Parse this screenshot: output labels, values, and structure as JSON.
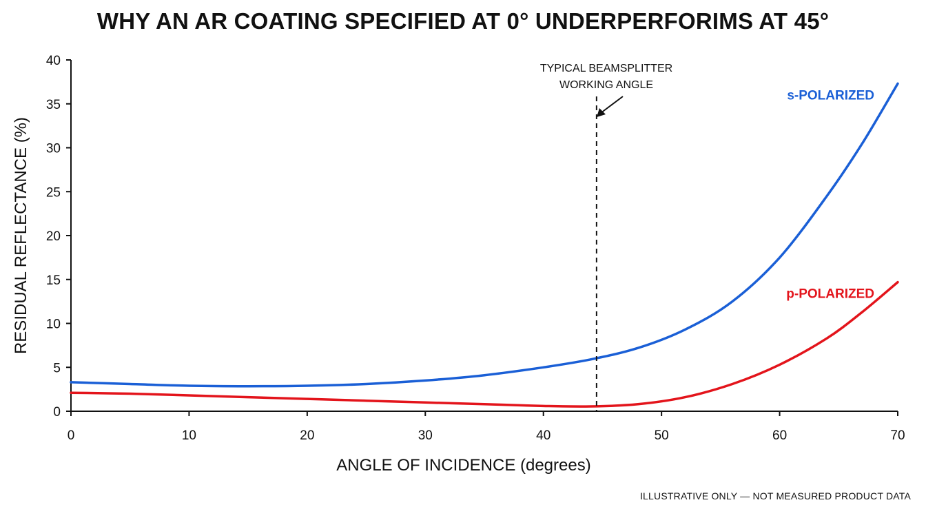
{
  "chart_data": {
    "type": "line",
    "title": "WHY AN AR COATING SPECIFIED AT 0° UNDERPERFORIMS AT 45°",
    "xlabel": "ANGLE OF INCIDENCE (degrees)",
    "ylabel": "RESIDUAL REFLECTANCE (%)",
    "xlim": [
      0,
      70
    ],
    "ylim": [
      0,
      40
    ],
    "xticks": [
      0,
      10,
      20,
      30,
      40,
      50,
      60,
      70
    ],
    "yticks": [
      0,
      5,
      10,
      15,
      20,
      25,
      30,
      35,
      40
    ],
    "grid": false,
    "series": [
      {
        "name": "s-POLARIZED",
        "color": "#1a5fd6",
        "x": [
          0,
          5,
          10,
          15,
          20,
          25,
          30,
          35,
          40,
          44,
          48,
          52,
          56,
          60,
          64,
          67,
          70
        ],
        "y": [
          3.3,
          3.1,
          2.9,
          2.85,
          2.9,
          3.1,
          3.5,
          4.1,
          5.0,
          5.9,
          7.2,
          9.3,
          12.5,
          17.5,
          24.5,
          30.5,
          37.3
        ]
      },
      {
        "name": "p-POLARIZED",
        "color": "#e3141b",
        "x": [
          0,
          5,
          10,
          15,
          20,
          25,
          30,
          35,
          40,
          44,
          48,
          52,
          56,
          60,
          64,
          67,
          70
        ],
        "y": [
          2.1,
          2.0,
          1.8,
          1.6,
          1.4,
          1.2,
          1.0,
          0.8,
          0.6,
          0.55,
          0.8,
          1.6,
          3.1,
          5.3,
          8.3,
          11.3,
          14.7
        ]
      }
    ],
    "annotations": [
      {
        "text_lines": [
          "TYPICAL BEAMSPLITTER",
          "WORKING ANGLE"
        ],
        "x": 44.5,
        "style": "dashed vertical line with arrow"
      }
    ],
    "footnote": "ILLUSTRATIVE ONLY — NOT MEASURED PRODUCT DATA"
  }
}
